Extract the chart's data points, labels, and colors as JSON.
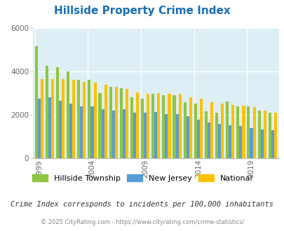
{
  "title": "Hillside Property Crime Index",
  "subtitle": "Crime Index corresponds to incidents per 100,000 inhabitants",
  "footer": "© 2025 CityRating.com - https://www.cityrating.com/crime-statistics/",
  "title_color": "#1a6eb5",
  "subtitle_color": "#333333",
  "footer_color": "#888888",
  "background_color": "#deeef5",
  "years": [
    1999,
    2000,
    2001,
    2002,
    2003,
    2004,
    2005,
    2006,
    2007,
    2008,
    2009,
    2010,
    2011,
    2012,
    2013,
    2014,
    2015,
    2016,
    2017,
    2018,
    2019,
    2020,
    2021
  ],
  "hillside": [
    5150,
    4250,
    4200,
    4000,
    3600,
    3620,
    3000,
    3280,
    3220,
    2800,
    2750,
    2950,
    2900,
    2900,
    2580,
    2520,
    2150,
    2100,
    2600,
    2380,
    2380,
    2180,
    2100
  ],
  "nj": [
    2750,
    2800,
    2650,
    2520,
    2380,
    2380,
    2250,
    2200,
    2250,
    2080,
    2080,
    2140,
    2040,
    2020,
    1920,
    1780,
    1650,
    1580,
    1530,
    1480,
    1380,
    1330,
    1280
  ],
  "national": [
    3640,
    3650,
    3630,
    3590,
    3510,
    3480,
    3390,
    3290,
    3200,
    3040,
    2960,
    2980,
    2970,
    2960,
    2810,
    2750,
    2590,
    2500,
    2460,
    2430,
    2360,
    2200,
    2090
  ],
  "hillside_color": "#8dc63f",
  "nj_color": "#5b9bd5",
  "national_color": "#ffc000",
  "ylim": [
    0,
    6000
  ],
  "yticks": [
    0,
    2000,
    4000,
    6000
  ],
  "xtick_years": [
    1999,
    2004,
    2009,
    2014,
    2019
  ],
  "bar_width": 0.27,
  "legend_labels": [
    "Hillside Township",
    "New Jersey",
    "National"
  ]
}
